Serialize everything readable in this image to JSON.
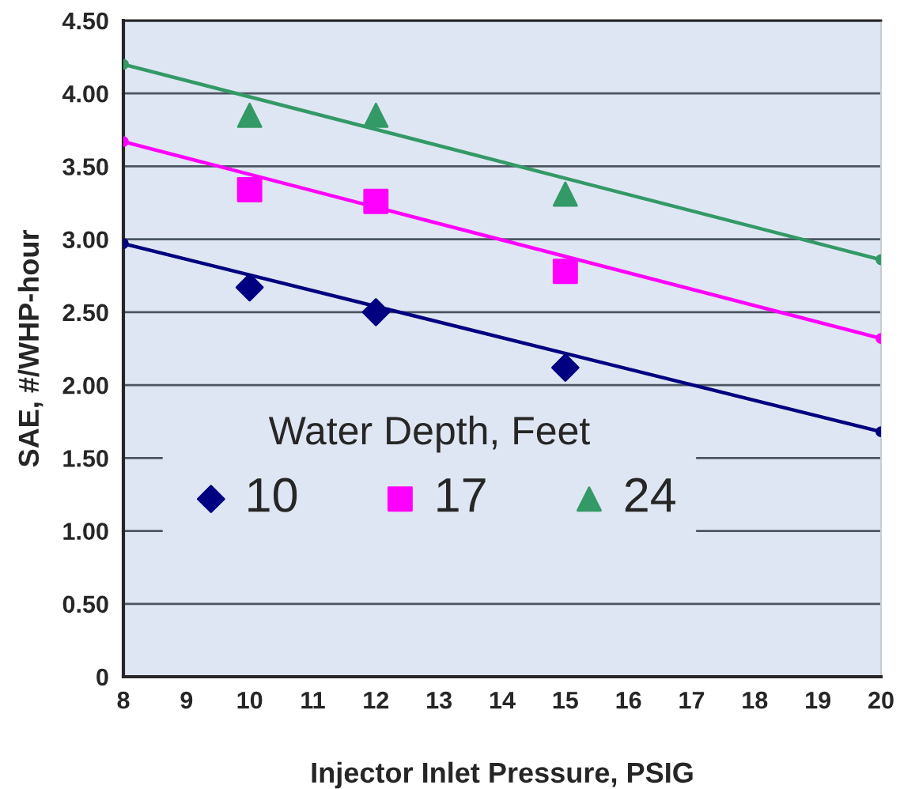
{
  "chart_data": {
    "type": "scatter",
    "xlabel": "Injector Inlet Pressure, PSIG",
    "ylabel": "SAE, #/WHP-hour",
    "legend_title": "Water Depth, Feet",
    "series": [
      {
        "name": "10",
        "color": "#000080",
        "marker": "diamond",
        "x": [
          10,
          12,
          15
        ],
        "values": [
          2.67,
          2.5,
          2.12
        ]
      },
      {
        "name": "17",
        "color": "#ff00ff",
        "marker": "square",
        "x": [
          10,
          12,
          15
        ],
        "values": [
          3.34,
          3.26,
          2.78
        ]
      },
      {
        "name": "24",
        "color": "#339966",
        "marker": "triangle",
        "x": [
          10,
          12,
          15
        ],
        "values": [
          3.85,
          3.85,
          3.31
        ]
      },
      {
        "type": "line",
        "color": "#000080",
        "marker": "circle",
        "x": [
          8,
          20
        ],
        "values": [
          2.97,
          1.68
        ]
      },
      {
        "type": "line",
        "color": "#ff00ff",
        "marker": "circle",
        "x": [
          8,
          20
        ],
        "values": [
          3.67,
          2.32
        ]
      },
      {
        "type": "line",
        "color": "#339966",
        "marker": "circle",
        "x": [
          8,
          20
        ],
        "values": [
          4.2,
          2.86
        ]
      }
    ],
    "xlim": [
      8,
      20
    ],
    "xticks": [
      8,
      9,
      10,
      11,
      12,
      13,
      14,
      15,
      16,
      17,
      18,
      19,
      20
    ],
    "ylim": [
      0,
      4.5
    ],
    "yticks": [
      {
        "value": 0,
        "label": "0"
      },
      {
        "value": 0.5,
        "label": "0.50"
      },
      {
        "value": 1.0,
        "label": "1.00"
      },
      {
        "value": 1.5,
        "label": "1.50"
      },
      {
        "value": 2.0,
        "label": "2.00"
      },
      {
        "value": 2.5,
        "label": "2.50"
      },
      {
        "value": 3.0,
        "label": "3.00"
      },
      {
        "value": 3.5,
        "label": "3.50"
      },
      {
        "value": 4.0,
        "label": "4.00"
      },
      {
        "value": 4.5,
        "label": "4.50"
      }
    ],
    "grid": "y",
    "legend": "bottom left"
  }
}
